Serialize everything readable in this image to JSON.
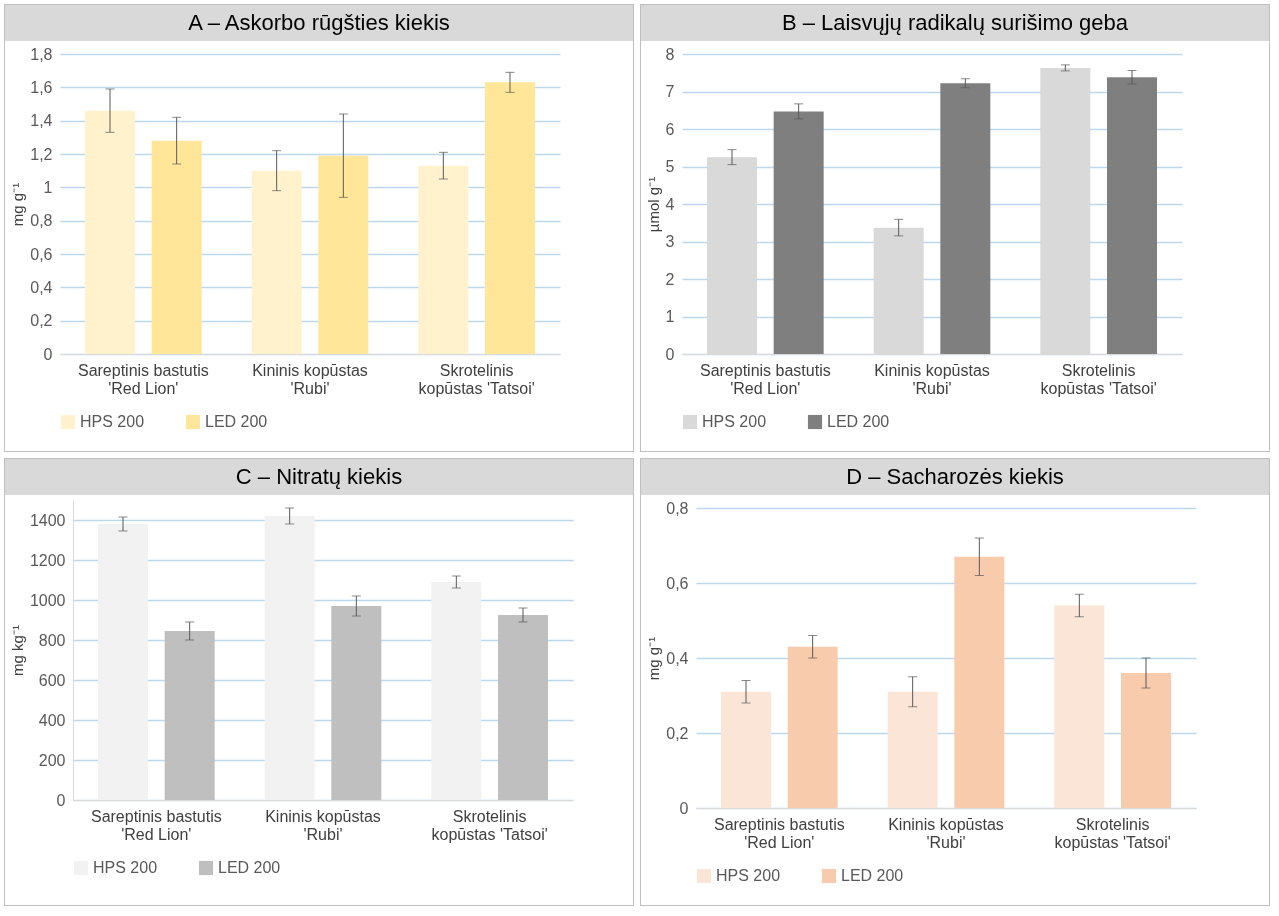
{
  "chart_data": [
    {
      "type": "bar",
      "title": "A – Askorbo rūgšties kiekis",
      "ylabel": "mg g⁻¹",
      "categories": [
        "Sareptinis bastutis 'Red Lion'",
        "Kininis kopūstas 'Rubi'",
        "Skrotelinis kopūstas 'Tatsoi'"
      ],
      "series": [
        {
          "name": "HPS 200",
          "color": "#fff2cc",
          "values": [
            1.46,
            1.1,
            1.13
          ],
          "errors": [
            0.13,
            0.12,
            0.08
          ]
        },
        {
          "name": "LED 200",
          "color": "#ffe699",
          "values": [
            1.28,
            1.19,
            1.63
          ],
          "errors": [
            0.14,
            0.25,
            0.06
          ]
        }
      ],
      "ylim": [
        0,
        1.8
      ],
      "yticks": [
        0,
        {
          "value": 0.2,
          "label": "0,2"
        },
        {
          "value": 0.4,
          "label": "0,4"
        },
        {
          "value": 0.6,
          "label": "0,6"
        },
        {
          "value": 0.8,
          "label": "0,8"
        },
        1,
        {
          "value": 1.2,
          "label": "1,2"
        },
        {
          "value": 1.4,
          "label": "1,4"
        },
        {
          "value": 1.6,
          "label": "1,6"
        },
        {
          "value": 1.8,
          "label": "1,8"
        }
      ],
      "grid": "y",
      "legend": "bottom"
    },
    {
      "type": "bar",
      "title": "B – Laisvųjų radikalų surišimo geba",
      "ylabel": "µmol g⁻¹",
      "categories": [
        "Sareptinis bastutis 'Red Lion'",
        "Kininis kopūstas 'Rubi'",
        "Skrotelinis kopūstas 'Tatsoi'"
      ],
      "series": [
        {
          "name": "HPS 200",
          "color": "#d9d9d9",
          "values": [
            5.25,
            3.37,
            7.63
          ],
          "errors": [
            0.2,
            0.22,
            0.08
          ]
        },
        {
          "name": "LED 200",
          "color": "#7f7f7f",
          "values": [
            6.47,
            7.22,
            7.38
          ],
          "errors": [
            0.2,
            0.12,
            0.18
          ]
        }
      ],
      "ylim": [
        0,
        8
      ],
      "yticks": [
        0,
        1,
        2,
        3,
        4,
        5,
        6,
        7,
        8
      ],
      "grid": "y",
      "legend": "bottom"
    },
    {
      "type": "bar",
      "title": "C – Nitratų kiekis",
      "ylabel": "mg kg⁻¹",
      "categories": [
        "Sareptinis bastutis 'Red Lion'",
        "Kininis kopūstas 'Rubi'",
        "Skrotelinis kopūstas 'Tatsoi'"
      ],
      "series": [
        {
          "name": "HPS 200",
          "color": "#f2f2f2",
          "values": [
            1380,
            1420,
            1090
          ],
          "errors": [
            35,
            40,
            30
          ]
        },
        {
          "name": "LED 200",
          "color": "#bfbfbf",
          "values": [
            845,
            970,
            925
          ],
          "errors": [
            45,
            50,
            35
          ]
        }
      ],
      "ylim": [
        0,
        1500
      ],
      "yticks": [
        0,
        200,
        400,
        600,
        800,
        1000,
        1200,
        1400
      ],
      "grid": "y",
      "legend": "bottom"
    },
    {
      "type": "bar",
      "title": "D – Sacharozės kiekis",
      "ylabel": "mg g⁻¹",
      "categories": [
        "Sareptinis bastutis 'Red Lion'",
        "Kininis kopūstas 'Rubi'",
        "Skrotelinis kopūstas 'Tatsoi'"
      ],
      "series": [
        {
          "name": "HPS 200",
          "color": "#fbe5d6",
          "values": [
            0.31,
            0.31,
            0.54
          ],
          "errors": [
            0.03,
            0.04,
            0.03
          ]
        },
        {
          "name": "LED 200",
          "color": "#f8cbad",
          "values": [
            0.43,
            0.67,
            0.36
          ],
          "errors": [
            0.03,
            0.05,
            0.04
          ]
        }
      ],
      "ylim": [
        0,
        0.8
      ],
      "yticks": [
        0,
        {
          "value": 0.2,
          "label": "0,2"
        },
        {
          "value": 0.4,
          "label": "0,4"
        },
        {
          "value": 0.6,
          "label": "0,6"
        },
        {
          "value": 0.8,
          "label": "0,8"
        }
      ],
      "grid": "y",
      "legend": "bottom"
    }
  ]
}
